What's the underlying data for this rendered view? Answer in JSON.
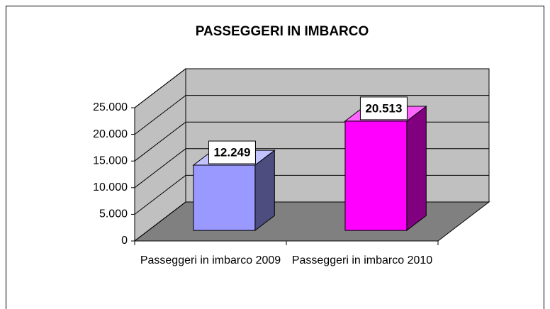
{
  "chart_data": {
    "type": "bar3d",
    "title": "PASSEGGERI IN IMBARCO",
    "categories": [
      "Passeggeri in imbarco 2009",
      "Passeggeri in imbarco 2010"
    ],
    "values": [
      12249,
      20513
    ],
    "value_labels": [
      "12.249",
      "20.513"
    ],
    "colors": [
      "#9999ff",
      "#ff00ff"
    ],
    "ylim": [
      0,
      25000
    ],
    "yticks": [
      0,
      {
        "value": 5000,
        "label": "5.000"
      },
      {
        "value": 10000,
        "label": "10.000"
      },
      {
        "value": 15000,
        "label": "15.000"
      },
      {
        "value": 20000,
        "label": "20.000"
      },
      {
        "value": 25000,
        "label": "25.000"
      }
    ],
    "grid": true
  }
}
